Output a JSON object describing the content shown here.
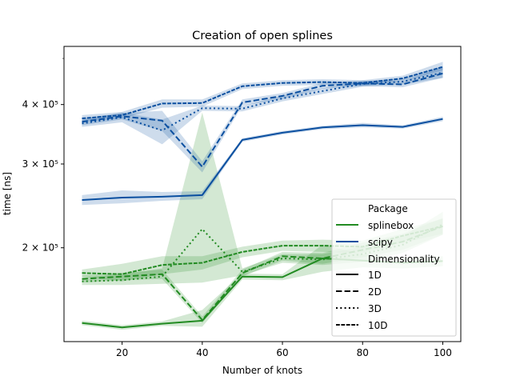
{
  "chart_data": {
    "type": "line",
    "title": "Creation of open splines",
    "xlabel": "Number of knots",
    "ylabel": "time [ns]",
    "x_scale": "linear",
    "y_scale": "log",
    "xlim": [
      5.5,
      104.5
    ],
    "ylim": [
      127000,
      530000
    ],
    "x": [
      10,
      20,
      30,
      40,
      50,
      60,
      70,
      80,
      90,
      100
    ],
    "xticks": [
      20,
      40,
      60,
      80,
      100
    ],
    "xtick_labels": [
      "20",
      "40",
      "60",
      "80",
      "100"
    ],
    "yticks": [
      200000,
      300000,
      400000
    ],
    "ytick_labels": [
      "2 × 10⁵",
      "3 × 10⁵",
      "4 × 10⁵"
    ],
    "grid": false,
    "legend": {
      "placement": "lower right",
      "hue_title": "Package",
      "style_title": "Dimensionality",
      "hue_entries": [
        "splinebox",
        "scipy"
      ],
      "style_entries": [
        "1D",
        "2D",
        "3D",
        "10D"
      ]
    },
    "colors": {
      "splinebox": "#228b22",
      "scipy": "#0a4fa0"
    },
    "series": [
      {
        "package": "splinebox",
        "dim": "1D",
        "values": [
          139000,
          136000,
          138500,
          140500,
          174000,
          173500,
          190000,
          188000,
          186000,
          187500
        ],
        "band": [
          [
            137500,
            140500
          ],
          [
            134500,
            137500
          ],
          [
            137000,
            140000
          ],
          [
            136500,
            148000
          ],
          [
            171500,
            176500
          ],
          [
            171000,
            176000
          ],
          [
            178000,
            203000
          ],
          [
            182000,
            194000
          ],
          [
            181000,
            191000
          ],
          [
            183000,
            192000
          ]
        ]
      },
      {
        "package": "splinebox",
        "dim": "2D",
        "values": [
          172000,
          174000,
          176000,
          141000,
          177000,
          192000,
          190000,
          198000,
          206000,
          222000
        ],
        "band": [
          [
            169000,
            175000
          ],
          [
            171000,
            177000
          ],
          [
            172000,
            180000
          ],
          [
            139000,
            143500
          ],
          [
            174000,
            180000
          ],
          [
            188000,
            196000
          ],
          [
            185000,
            195000
          ],
          [
            191000,
            205000
          ],
          [
            198000,
            214000
          ],
          [
            213000,
            231000
          ]
        ]
      },
      {
        "package": "splinebox",
        "dim": "3D",
        "values": [
          170000,
          171000,
          174000,
          219000,
          178000,
          190000,
          189000,
          194000,
          203000,
          224000
        ],
        "band": [
          [
            167000,
            173000
          ],
          [
            167000,
            176000
          ],
          [
            168000,
            181000
          ],
          [
            169000,
            385000
          ],
          [
            175000,
            181000
          ],
          [
            186000,
            194000
          ],
          [
            184000,
            194000
          ],
          [
            187000,
            201000
          ],
          [
            195000,
            211000
          ],
          [
            213000,
            238000
          ]
        ]
      },
      {
        "package": "splinebox",
        "dim": "10D",
        "values": [
          177000,
          176000,
          184000,
          186000,
          196000,
          202000,
          202000,
          201000,
          212000,
          222000
        ],
        "band": [
          [
            174000,
            180000
          ],
          [
            170000,
            185000
          ],
          [
            176000,
            192000
          ],
          [
            180000,
            192000
          ],
          [
            191000,
            201000
          ],
          [
            197000,
            207000
          ],
          [
            196000,
            208000
          ],
          [
            195000,
            207000
          ],
          [
            205000,
            219000
          ],
          [
            214000,
            230000
          ]
        ]
      },
      {
        "package": "scipy",
        "dim": "1D",
        "values": [
          252000,
          255000,
          256000,
          258000,
          337000,
          349000,
          358000,
          362000,
          359000,
          373000
        ],
        "band": [
          [
            246000,
            258000
          ],
          [
            248000,
            264000
          ],
          [
            251000,
            262000
          ],
          [
            253000,
            263000
          ],
          [
            334000,
            340000
          ],
          [
            346000,
            352000
          ],
          [
            355000,
            361000
          ],
          [
            358000,
            366000
          ],
          [
            356000,
            362000
          ],
          [
            369000,
            377000
          ]
        ]
      },
      {
        "package": "scipy",
        "dim": "2D",
        "values": [
          368000,
          378000,
          370000,
          296000,
          404000,
          417000,
          438000,
          443000,
          441000,
          465000
        ],
        "band": [
          [
            362000,
            374000
          ],
          [
            372000,
            384000
          ],
          [
            352000,
            388000
          ],
          [
            288000,
            304000
          ],
          [
            398000,
            410000
          ],
          [
            411000,
            423000
          ],
          [
            432000,
            444000
          ],
          [
            437000,
            449000
          ],
          [
            435000,
            447000
          ],
          [
            455000,
            480000
          ]
        ]
      },
      {
        "package": "scipy",
        "dim": "3D",
        "values": [
          365000,
          376000,
          353000,
          393000,
          392000,
          412000,
          427000,
          442000,
          447000,
          467000
        ],
        "band": [
          [
            359000,
            371000
          ],
          [
            367000,
            385000
          ],
          [
            330000,
            372000
          ],
          [
            388000,
            398000
          ],
          [
            387000,
            397000
          ],
          [
            406000,
            418000
          ],
          [
            421000,
            433000
          ],
          [
            436000,
            448000
          ],
          [
            441000,
            453000
          ],
          [
            455000,
            482000
          ]
        ]
      },
      {
        "package": "scipy",
        "dim": "10D",
        "values": [
          374000,
          380000,
          402000,
          403000,
          437000,
          444000,
          446000,
          444000,
          454000,
          480000
        ],
        "band": [
          [
            368000,
            380000
          ],
          [
            374000,
            386000
          ],
          [
            394000,
            410000
          ],
          [
            396000,
            410000
          ],
          [
            431000,
            443000
          ],
          [
            438000,
            450000
          ],
          [
            440000,
            452000
          ],
          [
            438000,
            450000
          ],
          [
            448000,
            460000
          ],
          [
            472000,
            492000
          ]
        ]
      }
    ]
  }
}
